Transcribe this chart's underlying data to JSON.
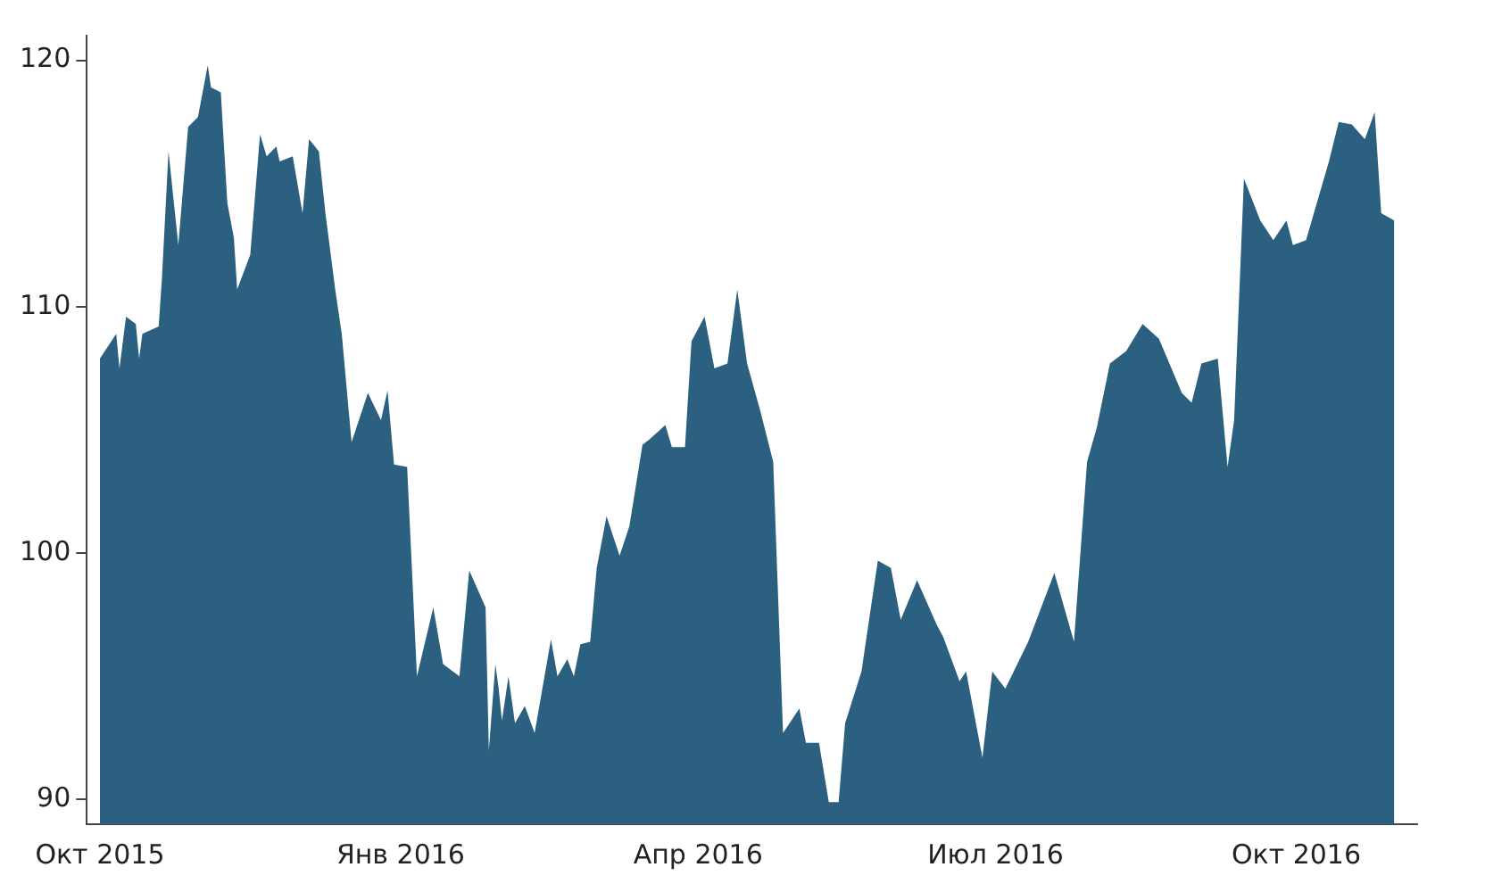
{
  "chart_data": {
    "type": "area",
    "x": [
      "2015-10-01",
      "2015-10-06",
      "2015-10-07",
      "2015-10-09",
      "2015-10-12",
      "2015-10-13",
      "2015-10-14",
      "2015-10-19",
      "2015-10-20",
      "2015-10-22",
      "2015-10-25",
      "2015-10-28",
      "2015-10-31",
      "2015-11-03",
      "2015-11-04",
      "2015-11-07",
      "2015-11-09",
      "2015-11-11",
      "2015-11-12",
      "2015-11-16",
      "2015-11-19",
      "2015-11-21",
      "2015-11-24",
      "2015-11-25",
      "2015-11-29",
      "2015-12-02",
      "2015-12-04",
      "2015-12-07",
      "2015-12-09",
      "2015-12-12",
      "2015-12-14",
      "2015-12-17",
      "2015-12-22",
      "2015-12-26",
      "2015-12-28",
      "2015-12-30",
      "2016-01-03",
      "2016-01-06",
      "2016-01-11",
      "2016-01-14",
      "2016-01-17",
      "2016-01-19",
      "2016-01-22",
      "2016-01-27",
      "2016-01-28",
      "2016-01-30",
      "2016-01-31",
      "2016-02-01",
      "2016-02-03",
      "2016-02-05",
      "2016-02-08",
      "2016-02-11",
      "2016-02-16",
      "2016-02-18",
      "2016-02-21",
      "2016-02-23",
      "2016-02-25",
      "2016-02-28",
      "2016-03-01",
      "2016-03-04",
      "2016-03-08",
      "2016-03-11",
      "2016-03-15",
      "2016-03-17",
      "2016-03-22",
      "2016-03-24",
      "2016-03-28",
      "2016-03-30",
      "2016-04-03",
      "2016-04-06",
      "2016-04-10",
      "2016-04-13",
      "2016-04-16",
      "2016-04-20",
      "2016-04-24",
      "2016-04-27",
      "2016-05-02",
      "2016-05-04",
      "2016-05-08",
      "2016-05-11",
      "2016-05-14",
      "2016-05-16",
      "2016-05-21",
      "2016-05-26",
      "2016-05-30",
      "2016-06-02",
      "2016-06-07",
      "2016-06-13",
      "2016-06-15",
      "2016-06-20",
      "2016-06-22",
      "2016-06-27",
      "2016-06-30",
      "2016-07-04",
      "2016-07-11",
      "2016-07-19",
      "2016-07-25",
      "2016-07-29",
      "2016-08-01",
      "2016-08-05",
      "2016-08-10",
      "2016-08-15",
      "2016-08-20",
      "2016-08-27",
      "2016-08-30",
      "2016-09-02",
      "2016-09-07",
      "2016-09-10",
      "2016-09-12",
      "2016-09-15",
      "2016-09-20",
      "2016-09-24",
      "2016-09-28",
      "2016-09-30",
      "2016-10-04",
      "2016-10-11",
      "2016-10-14",
      "2016-10-18",
      "2016-10-22",
      "2016-10-25",
      "2016-10-27",
      "2016-10-31"
    ],
    "series": [
      {
        "color": "#2b6080",
        "values": [
          107.9,
          108.9,
          107.5,
          109.6,
          109.3,
          107.9,
          108.9,
          109.2,
          111.2,
          116.3,
          112.5,
          117.3,
          117.7,
          119.8,
          118.9,
          118.7,
          114.2,
          112.8,
          110.7,
          112.1,
          117.0,
          116.1,
          116.5,
          115.9,
          116.1,
          113.8,
          116.8,
          116.3,
          113.8,
          110.7,
          108.9,
          104.5,
          106.5,
          105.4,
          106.6,
          103.6,
          103.5,
          95.0,
          97.8,
          95.5,
          95.2,
          95.0,
          99.3,
          97.8,
          92.0,
          95.5,
          94.5,
          93.2,
          95.0,
          93.1,
          93.8,
          92.7,
          96.5,
          95.0,
          95.7,
          95.0,
          96.3,
          96.4,
          99.4,
          101.5,
          99.9,
          101.1,
          104.4,
          104.6,
          105.2,
          104.3,
          104.3,
          108.6,
          109.6,
          107.5,
          107.7,
          110.7,
          107.7,
          105.8,
          103.7,
          92.7,
          93.7,
          92.3,
          92.3,
          89.9,
          89.9,
          93.1,
          95.2,
          99.7,
          99.4,
          97.3,
          98.9,
          97.1,
          96.6,
          94.8,
          95.2,
          91.7,
          95.2,
          94.5,
          96.4,
          99.2,
          96.4,
          103.7,
          105.1,
          107.7,
          108.2,
          109.3,
          108.7,
          106.5,
          106.1,
          107.7,
          107.9,
          103.5,
          105.4,
          115.2,
          113.5,
          112.7,
          113.5,
          112.5,
          112.7,
          115.9,
          117.5,
          117.4,
          116.8,
          117.9,
          113.8,
          113.5
        ]
      }
    ],
    "xlim": [
      "2015-09-27",
      "2016-11-07"
    ],
    "xticks": [
      {
        "value": "2015-10-01",
        "label": "Окт 2015"
      },
      {
        "value": "2016-01-01",
        "label": "Янв 2016"
      },
      {
        "value": "2016-04-01",
        "label": "Апр 2016"
      },
      {
        "value": "2016-07-01",
        "label": "Июл 2016"
      },
      {
        "value": "2016-10-01",
        "label": "Окт 2016"
      }
    ],
    "ylim": [
      89,
      121
    ],
    "yticks": [
      90,
      100,
      110,
      120
    ],
    "grid": false,
    "legend": false
  }
}
